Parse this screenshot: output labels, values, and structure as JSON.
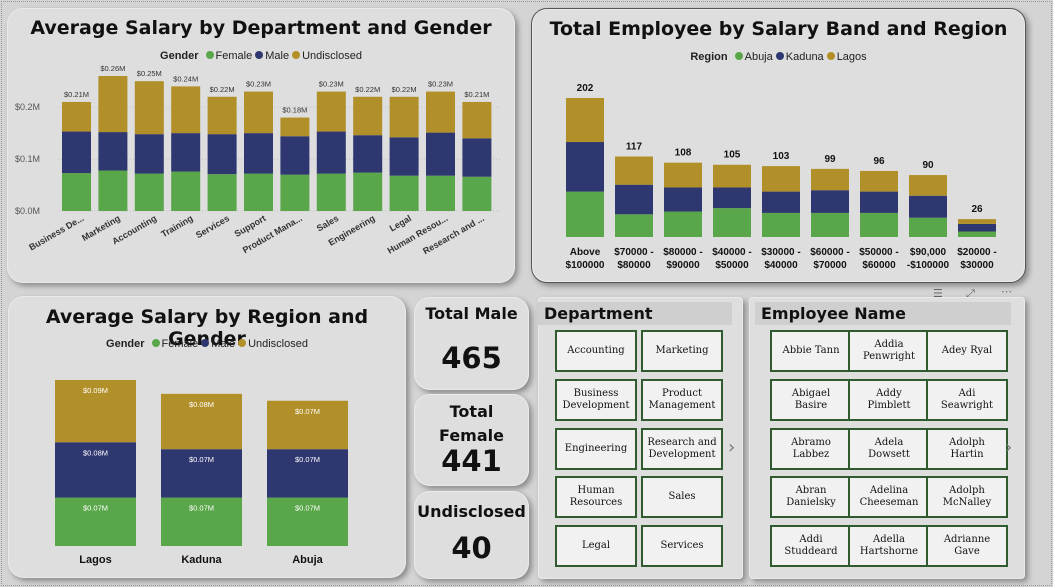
{
  "charts": {
    "dept": {
      "title": "Average Salary by Department and Gender",
      "legend_title": "Gender",
      "y_ticks": [
        "$0.2M",
        "$0.1M",
        "$0.0M"
      ]
    },
    "band": {
      "title": "Total Employee by Salary Band and Region",
      "legend_title": "Region"
    },
    "region": {
      "title": "Average Salary by Region and Gender",
      "legend_title": "Gender"
    }
  },
  "chart_data": [
    {
      "type": "bar",
      "title": "Average Salary by Department and Gender",
      "categories": [
        "Business De...",
        "Marketing",
        "Accounting",
        "Training",
        "Services",
        "Support",
        "Product Mana...",
        "Sales",
        "Engineering",
        "Legal",
        "Human Resou...",
        "Research and ..."
      ],
      "series": [
        {
          "name": "Female",
          "color": "#5aa64a",
          "values": [
            0.073,
            0.078,
            0.072,
            0.076,
            0.071,
            0.072,
            0.07,
            0.072,
            0.074,
            0.068,
            0.068,
            0.066
          ]
        },
        {
          "name": "Male",
          "color": "#2e376f",
          "values": [
            0.08,
            0.074,
            0.076,
            0.074,
            0.077,
            0.078,
            0.074,
            0.081,
            0.072,
            0.074,
            0.083,
            0.074
          ]
        },
        {
          "name": "Undisclosed",
          "color": "#b18f29",
          "values": [
            0.057,
            0.108,
            0.102,
            0.09,
            0.072,
            0.08,
            0.036,
            0.077,
            0.074,
            0.078,
            0.079,
            0.07
          ]
        }
      ],
      "totals": [
        "$0.21M",
        "$0.26M",
        "$0.25M",
        "$0.24M",
        "$0.22M",
        "$0.23M",
        "$0.18M",
        "$0.23M",
        "$0.22M",
        "$0.22M",
        "$0.23M",
        "$0.21M"
      ],
      "ylim": [
        0,
        0.26
      ],
      "y_ticks": [
        "$0.2M",
        "$0.1M",
        "$0.0M"
      ],
      "legend": [
        "Female",
        "Male",
        "Undisclosed"
      ],
      "legend_title": "Gender"
    },
    {
      "type": "bar",
      "title": "Total Employee by Salary Band and Region",
      "categories": [
        [
          "Above",
          "$100000"
        ],
        [
          "$70000 -",
          "$80000"
        ],
        [
          "$80000 -",
          "$90000"
        ],
        [
          "$40000 -",
          "$50000"
        ],
        [
          "$30000 -",
          "$40000"
        ],
        [
          "$60000 -",
          "$70000"
        ],
        [
          "$50000 -",
          "$60000"
        ],
        [
          "$90,000",
          "-$100000"
        ],
        [
          "$20000 -",
          "$30000"
        ]
      ],
      "series": [
        {
          "name": "Abuja",
          "color": "#5aa64a",
          "values": [
            66,
            33,
            37,
            42,
            35,
            35,
            35,
            28,
            8
          ]
        },
        {
          "name": "Kaduna",
          "color": "#2e376f",
          "values": [
            72,
            43,
            35,
            30,
            31,
            33,
            31,
            32,
            11
          ]
        },
        {
          "name": "Lagos",
          "color": "#b18f29",
          "values": [
            64,
            41,
            36,
            33,
            37,
            31,
            30,
            30,
            7
          ]
        }
      ],
      "totals": [
        202,
        117,
        108,
        105,
        103,
        99,
        96,
        90,
        26
      ],
      "ylim": [
        0,
        202
      ],
      "legend": [
        "Abuja",
        "Kaduna",
        "Lagos"
      ],
      "legend_title": "Region"
    },
    {
      "type": "bar",
      "title": "Average Salary by Region and Gender",
      "categories": [
        "Lagos",
        "Kaduna",
        "Abuja"
      ],
      "series": [
        {
          "name": "Female",
          "color": "#5aa64a",
          "values": [
            0.07,
            0.07,
            0.07
          ],
          "labels": [
            "$0.07M",
            "$0.07M",
            "$0.07M"
          ]
        },
        {
          "name": "Male",
          "color": "#2e376f",
          "values": [
            0.08,
            0.07,
            0.07
          ],
          "labels": [
            "$0.08M",
            "$0.07M",
            "$0.07M"
          ]
        },
        {
          "name": "Undisclosed",
          "color": "#b18f29",
          "values": [
            0.09,
            0.08,
            0.07
          ],
          "labels": [
            "$0.09M",
            "$0.08M",
            "$0.07M"
          ]
        }
      ],
      "legend": [
        "Female",
        "Male",
        "Undisclosed"
      ],
      "legend_title": "Gender"
    }
  ],
  "kpis": {
    "male": {
      "title": "Total Male",
      "value": "465"
    },
    "female": {
      "title_line1": "Total",
      "title_line2": "Female",
      "value": "441"
    },
    "undisclosed": {
      "title": "Undisclosed",
      "value": "40"
    }
  },
  "department_slicer": {
    "title": "Department",
    "items": [
      [
        "Accounting"
      ],
      [
        "Marketing"
      ],
      [
        "Business",
        "Development"
      ],
      [
        "Product",
        "Management"
      ],
      [
        "Engineering"
      ],
      [
        "Research and",
        "Development"
      ],
      [
        "Human",
        "Resources"
      ],
      [
        "Sales"
      ],
      [
        "Legal"
      ],
      [
        "Services"
      ]
    ]
  },
  "employee_slicer": {
    "title": "Employee Name",
    "items": [
      [
        "Abbie Tann"
      ],
      [
        "Addia",
        "Penwright"
      ],
      [
        "Adey Ryal"
      ],
      [
        "Abigael",
        "Basire"
      ],
      [
        "Addy",
        "Pimblett"
      ],
      [
        "Adi",
        "Seawright"
      ],
      [
        "Abramo",
        "Labbez"
      ],
      [
        "Adela",
        "Dowsett"
      ],
      [
        "Adolph",
        "Hartin"
      ],
      [
        "Abran",
        "Danielsky"
      ],
      [
        "Adelina",
        "Cheeseman"
      ],
      [
        "Adolph",
        "McNalley"
      ],
      [
        "Addi",
        "Studdeard"
      ],
      [
        "Adella",
        "Hartshorne"
      ],
      [
        "Adrianne",
        "Gave"
      ]
    ]
  },
  "icons": {
    "next": "chevron-right-icon",
    "filter": "filter-icon",
    "focus": "focus-mode-icon",
    "more": "more-options-icon"
  },
  "colors": {
    "female": "#5aa64a",
    "male": "#2e376f",
    "undisclosed": "#b18f29",
    "tile_border": "#2f5b2f"
  }
}
